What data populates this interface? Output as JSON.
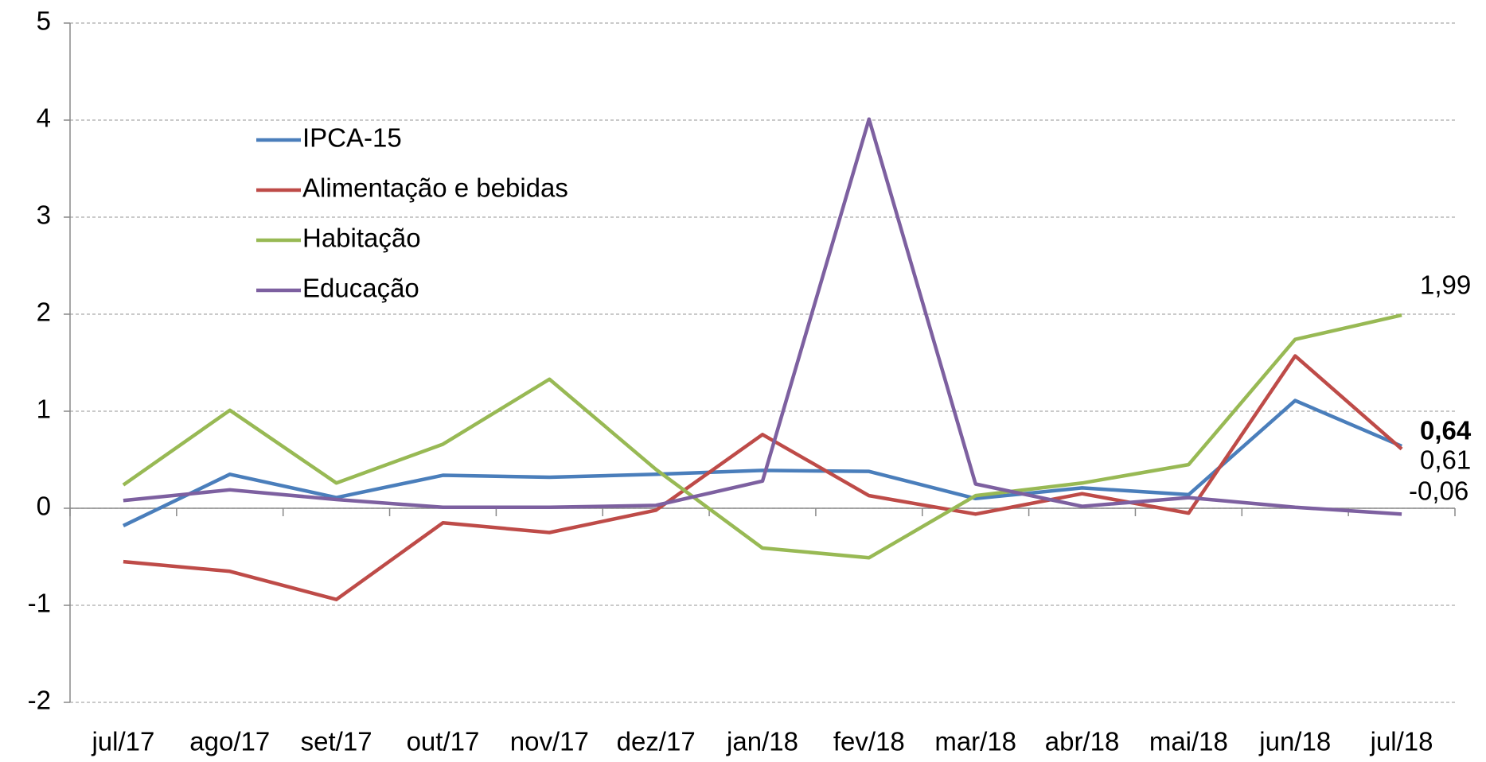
{
  "chart_data": {
    "type": "line",
    "categories": [
      "jul/17",
      "ago/17",
      "set/17",
      "out/17",
      "nov/17",
      "dez/17",
      "jan/18",
      "fev/18",
      "mar/18",
      "abr/18",
      "mai/18",
      "jun/18",
      "jul/18"
    ],
    "series": [
      {
        "name": "IPCA-15",
        "color": "#4a7ebb",
        "values": [
          -0.18,
          0.35,
          0.11,
          0.34,
          0.32,
          0.35,
          0.39,
          0.38,
          0.1,
          0.21,
          0.14,
          1.11,
          0.64
        ],
        "end_label": "0,64",
        "end_label_bold": true
      },
      {
        "name": "Alimentação e bebidas",
        "color": "#be4b48",
        "values": [
          -0.55,
          -0.65,
          -0.94,
          -0.15,
          -0.25,
          -0.02,
          0.76,
          0.13,
          -0.06,
          0.15,
          -0.05,
          1.57,
          0.61
        ],
        "end_label": "0,61"
      },
      {
        "name": "Habitação",
        "color": "#98b954",
        "values": [
          0.24,
          1.01,
          0.26,
          0.66,
          1.33,
          0.4,
          -0.41,
          -0.51,
          0.13,
          0.26,
          0.45,
          1.74,
          1.99
        ],
        "end_label": "1,99"
      },
      {
        "name": "Educação",
        "color": "#7d60a0",
        "values": [
          0.08,
          0.19,
          0.09,
          0.01,
          0.01,
          0.03,
          0.28,
          4.01,
          0.25,
          0.02,
          0.11,
          0.01,
          -0.06
        ],
        "end_label": "-0,06"
      }
    ],
    "ylim": [
      -2,
      5
    ],
    "yticks": [
      -2,
      -1,
      0,
      1,
      2,
      3,
      4,
      5
    ],
    "grid": true
  }
}
